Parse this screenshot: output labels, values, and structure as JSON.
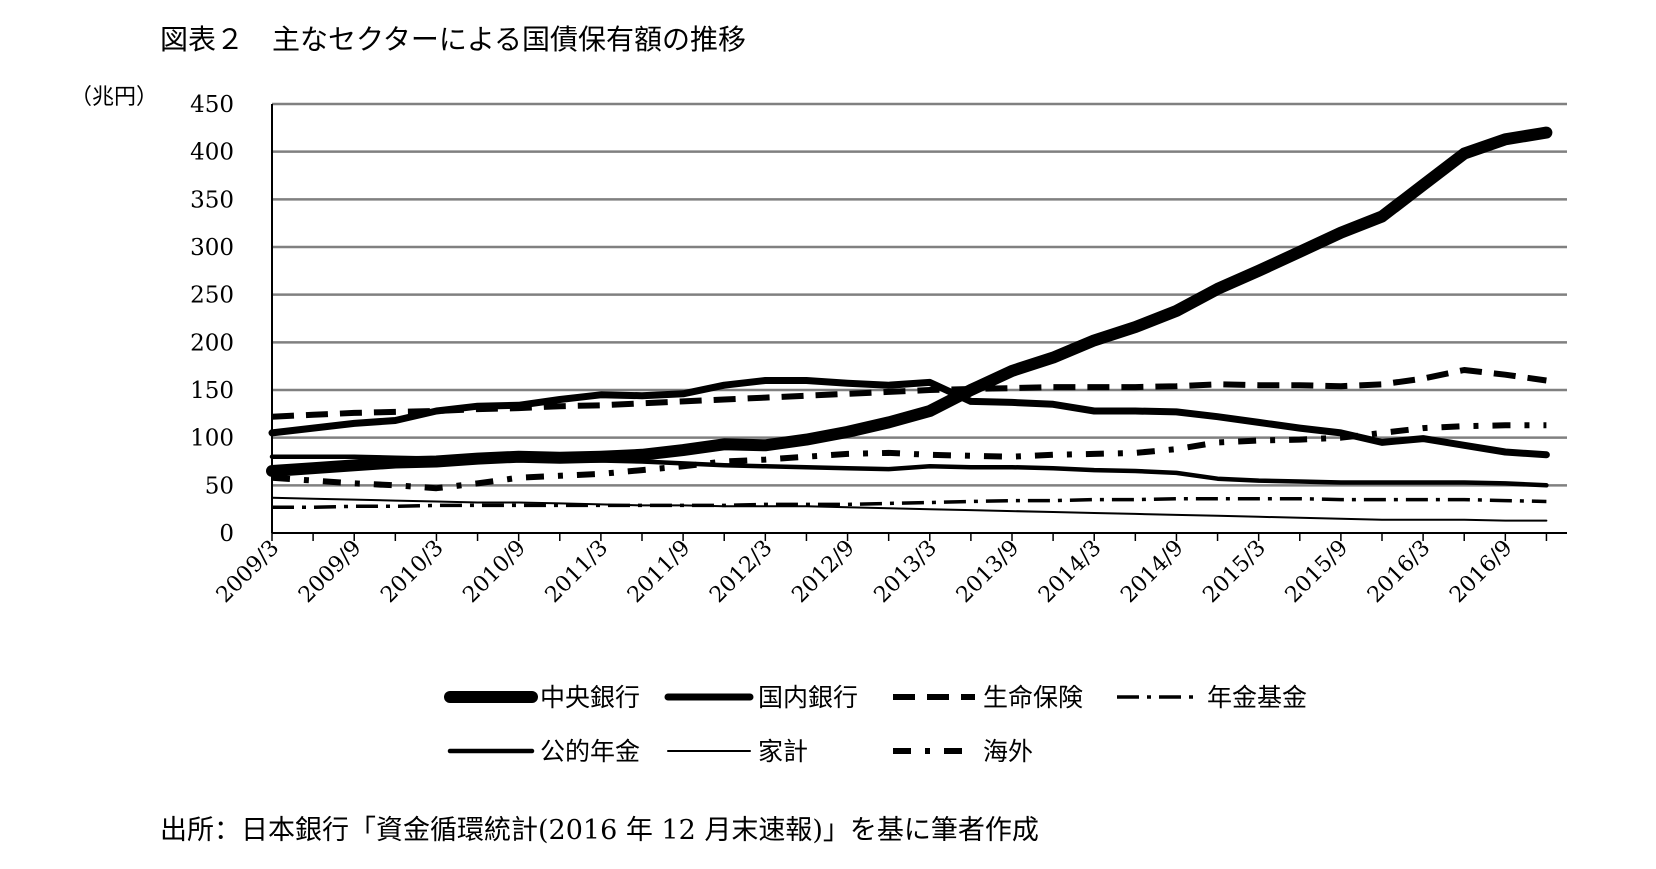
{
  "page": {
    "title": "図表２　主なセクターによる国債保有額の推移",
    "source": "出所：日本銀行「資金循環統計(2016 年 12 月末速報)」を基に筆者作成"
  },
  "chart_data": {
    "type": "line",
    "y_unit": "（兆円）",
    "ylim": [
      0,
      450
    ],
    "y_ticks": [
      0,
      50,
      100,
      150,
      200,
      250,
      300,
      350,
      400,
      450
    ],
    "x": [
      "2009/3",
      "2009/6",
      "2009/9",
      "2009/12",
      "2010/3",
      "2010/6",
      "2010/9",
      "2010/12",
      "2011/3",
      "2011/6",
      "2011/9",
      "2011/12",
      "2012/3",
      "2012/6",
      "2012/9",
      "2012/12",
      "2013/3",
      "2013/6",
      "2013/9",
      "2013/12",
      "2014/3",
      "2014/6",
      "2014/9",
      "2014/12",
      "2015/3",
      "2015/6",
      "2015/9",
      "2015/12",
      "2016/3",
      "2016/6",
      "2016/9",
      "2016/12"
    ],
    "x_tick_labels": [
      "2009/3",
      "2009/9",
      "2010/3",
      "2010/9",
      "2011/3",
      "2011/9",
      "2012/3",
      "2012/9",
      "2013/3",
      "2013/9",
      "2014/3",
      "2014/9",
      "2015/3",
      "2015/9",
      "2016/3",
      "2016/9"
    ],
    "grid": true,
    "legend_position": "bottom",
    "series": [
      {
        "name": "中央銀行",
        "style": "thick-solid",
        "values": [
          65,
          68,
          71,
          74,
          75,
          78,
          80,
          79,
          80,
          82,
          87,
          93,
          92,
          98,
          106,
          116,
          128,
          150,
          170,
          184,
          202,
          216,
          233,
          256,
          275,
          295,
          315,
          332,
          365,
          398,
          413,
          420
        ]
      },
      {
        "name": "国内銀行",
        "style": "medium-solid",
        "values": [
          105,
          110,
          115,
          118,
          128,
          133,
          134,
          140,
          145,
          144,
          146,
          155,
          160,
          160,
          157,
          155,
          158,
          138,
          137,
          135,
          128,
          128,
          127,
          122,
          116,
          110,
          105,
          95,
          99,
          92,
          85,
          82
        ]
      },
      {
        "name": "生命保険",
        "style": "dashed",
        "values": [
          122,
          124,
          126,
          127,
          128,
          130,
          131,
          133,
          134,
          136,
          138,
          140,
          142,
          144,
          146,
          148,
          150,
          151,
          152,
          153,
          153,
          153,
          154,
          156,
          155,
          155,
          154,
          156,
          162,
          171,
          166,
          160
        ]
      },
      {
        "name": "年金基金",
        "style": "dash-dot",
        "values": [
          27,
          27,
          28,
          28,
          29,
          29,
          29,
          29,
          29,
          29,
          29,
          29,
          30,
          30,
          30,
          31,
          32,
          33,
          34,
          34,
          35,
          35,
          36,
          36,
          36,
          36,
          35,
          35,
          35,
          35,
          34,
          33
        ]
      },
      {
        "name": "公的年金",
        "style": "solid",
        "values": [
          80,
          80,
          80,
          79,
          78,
          78,
          77,
          76,
          76,
          75,
          73,
          71,
          70,
          69,
          68,
          67,
          70,
          69,
          69,
          68,
          66,
          65,
          63,
          57,
          55,
          54,
          53,
          53,
          53,
          53,
          52,
          50
        ]
      },
      {
        "name": "家計",
        "style": "thin-solid",
        "values": [
          37,
          36,
          35,
          34,
          33,
          32,
          32,
          31,
          30,
          29,
          29,
          28,
          28,
          28,
          27,
          26,
          25,
          24,
          23,
          22,
          21,
          20,
          19,
          18,
          17,
          16,
          15,
          14,
          14,
          14,
          13,
          13
        ]
      },
      {
        "name": "海外",
        "style": "dotted",
        "values": [
          58,
          55,
          52,
          50,
          47,
          52,
          58,
          60,
          62,
          66,
          70,
          75,
          77,
          80,
          83,
          84,
          82,
          81,
          80,
          82,
          83,
          84,
          88,
          95,
          97,
          98,
          100,
          105,
          110,
          112,
          113,
          113
        ]
      }
    ]
  }
}
